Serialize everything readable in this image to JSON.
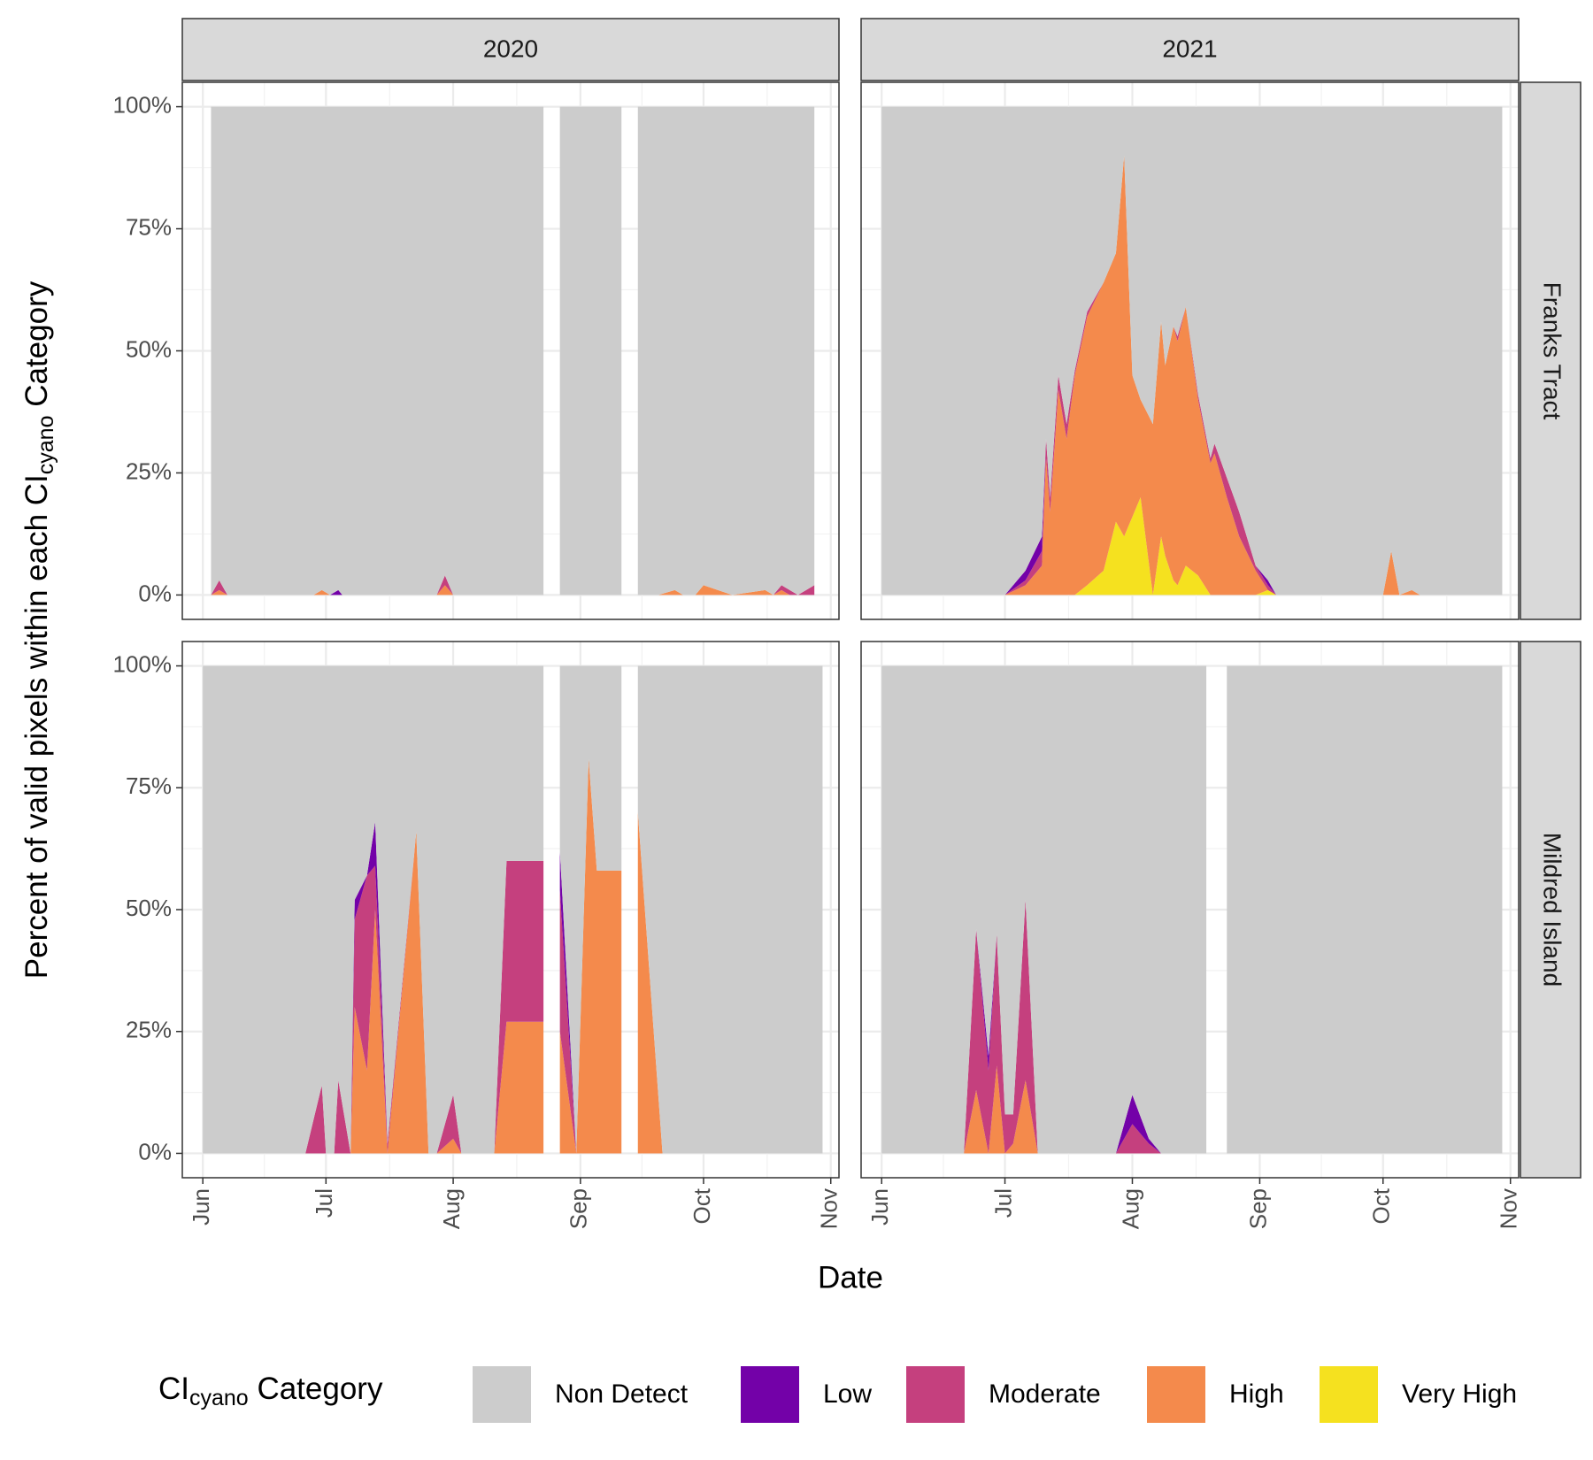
{
  "chart_data": [
    {
      "type": "area",
      "stacked": true,
      "facet_col": "2020",
      "ylabel": {
        "text": "Percent of valid pixels within each CI",
        "sub": "cyano",
        "tail": " Category"
      },
      "xlabel": "Date",
      "legend_title": {
        "text": "CI",
        "sub": "cyano",
        "tail": " Category"
      },
      "x": [
        "2020-06-03",
        "2020-06-05",
        "2020-06-07",
        "2020-06-28",
        "2020-06-30",
        "2020-07-02",
        "2020-07-04",
        "2020-07-05",
        "2020-07-28",
        "2020-07-30",
        "2020-08-01",
        "2020-08-23",
        "2020-08-25",
        "2020-08-27",
        "2020-09-11",
        "2020-09-13",
        "2020-09-15",
        "2020-09-20",
        "2020-09-24",
        "2020-09-26",
        "2020-09-29",
        "2020-10-01",
        "2020-10-08",
        "2020-10-16",
        "2020-10-18",
        "2020-10-20",
        "2020-10-22",
        "2020-10-24",
        "2020-10-28"
      ],
      "series": [
        {
          "name": "Non Detect",
          "color": "#cccccc",
          "values": [
            100,
            97,
            100,
            100,
            99,
            100,
            99,
            100,
            100,
            96,
            100,
            100,
            null,
            100,
            100,
            null,
            100,
            100,
            99,
            100,
            100,
            98,
            100,
            99,
            100,
            98,
            99,
            100,
            98
          ]
        },
        {
          "name": "Low",
          "color": "#7301a8",
          "values": [
            0,
            0,
            0,
            0,
            0,
            0,
            1,
            0,
            0,
            0,
            0,
            0,
            null,
            0,
            0,
            null,
            0,
            0,
            0,
            0,
            0,
            0,
            0,
            0,
            0,
            0,
            0,
            0,
            0
          ]
        },
        {
          "name": "Moderate",
          "color": "#c5407e",
          "values": [
            0,
            2,
            0,
            0,
            0,
            0,
            0,
            0,
            0,
            2,
            0,
            0,
            null,
            0,
            0,
            null,
            0,
            0,
            0,
            0,
            0,
            0,
            0,
            0,
            0,
            1,
            1,
            0,
            2
          ]
        },
        {
          "name": "High",
          "color": "#f48a4c",
          "values": [
            0,
            1,
            0,
            0,
            1,
            0,
            0,
            0,
            0,
            2,
            0,
            0,
            null,
            0,
            0,
            null,
            0,
            0,
            1,
            0,
            0,
            2,
            0,
            1,
            0,
            1,
            0,
            0,
            0
          ]
        },
        {
          "name": "Very High",
          "color": "#f5e11f",
          "values": [
            0,
            0,
            0,
            0,
            0,
            0,
            0,
            0,
            0,
            0,
            0,
            0,
            null,
            0,
            0,
            null,
            0,
            0,
            0,
            0,
            0,
            0,
            0,
            0,
            0,
            0,
            0,
            0,
            0
          ]
        }
      ],
      "xlim": [
        "2020-05-27",
        "2020-11-03"
      ],
      "ylim": [
        -5,
        105
      ],
      "yticks": [
        {
          "value": 0,
          "label": "0%"
        },
        {
          "value": 25,
          "label": "25%"
        },
        {
          "value": 50,
          "label": "50%"
        },
        {
          "value": 75,
          "label": "75%"
        },
        {
          "value": 100,
          "label": "100%"
        }
      ]
    },
    {
      "type": "area",
      "stacked": true,
      "facet_col": "2021",
      "facet_row": "Franks Tract",
      "x": [
        "2021-06-01",
        "2021-07-01",
        "2021-07-06",
        "2021-07-10",
        "2021-07-11",
        "2021-07-12",
        "2021-07-14",
        "2021-07-16",
        "2021-07-18",
        "2021-07-21",
        "2021-07-25",
        "2021-07-28",
        "2021-07-30",
        "2021-08-01",
        "2021-08-03",
        "2021-08-06",
        "2021-08-08",
        "2021-08-09",
        "2021-08-11",
        "2021-08-12",
        "2021-08-14",
        "2021-08-17",
        "2021-08-20",
        "2021-08-21",
        "2021-08-24",
        "2021-08-27",
        "2021-08-31",
        "2021-09-03",
        "2021-09-05",
        "2021-10-01",
        "2021-10-03",
        "2021-10-05",
        "2021-10-08",
        "2021-10-10",
        "2021-10-30"
      ],
      "series": [
        {
          "color": "#cccccc",
          "values": [
            100,
            100,
            95,
            88,
            68,
            80,
            55,
            65,
            54,
            42,
            36,
            30,
            10,
            55,
            60,
            65,
            44,
            53,
            45,
            47,
            41,
            59,
            72,
            69,
            76,
            83,
            94,
            97,
            100,
            100,
            91,
            100,
            99,
            100,
            100
          ]
        },
        {
          "color": "#7301a8",
          "values": [
            0,
            0,
            2,
            3,
            0,
            0,
            0,
            0,
            0,
            0,
            0,
            0,
            0,
            0,
            0,
            0,
            0,
            0,
            0,
            0,
            0,
            0,
            0,
            0,
            0,
            0,
            0,
            1,
            0,
            0,
            0,
            0,
            0,
            0,
            0
          ]
        },
        {
          "color": "#c5407e",
          "values": [
            0,
            0,
            1,
            3,
            4,
            3,
            3,
            3,
            1,
            1,
            0,
            0,
            0,
            0,
            0,
            0,
            0,
            0,
            0,
            1,
            0,
            1,
            1,
            2,
            4,
            5,
            1,
            1,
            0,
            0,
            0,
            0,
            0,
            0,
            0
          ]
        },
        {
          "color": "#f48a4c",
          "values": [
            0,
            0,
            2,
            6,
            28,
            17,
            42,
            32,
            45,
            55,
            59,
            55,
            78,
            29,
            20,
            35,
            44,
            39,
            52,
            50,
            53,
            36,
            27,
            29,
            20,
            12,
            5,
            0,
            0,
            0,
            9,
            0,
            1,
            0,
            0
          ]
        },
        {
          "color": "#f5e11f",
          "values": [
            0,
            0,
            0,
            0,
            0,
            0,
            0,
            0,
            0,
            2,
            5,
            15,
            12,
            16,
            20,
            0,
            12,
            8,
            3,
            2,
            6,
            4,
            0,
            0,
            0,
            0,
            0,
            1,
            0,
            0,
            0,
            0,
            0,
            0,
            0
          ]
        }
      ],
      "xlim": [
        "2021-05-27",
        "2021-11-03"
      ],
      "ylim": [
        -5,
        105
      ]
    },
    {
      "type": "area",
      "stacked": true,
      "x": [
        "2020-06-01",
        "2020-06-26",
        "2020-06-30",
        "2020-07-01",
        "2020-07-03",
        "2020-07-04",
        "2020-07-07",
        "2020-07-08",
        "2020-07-11",
        "2020-07-13",
        "2020-07-16",
        "2020-07-23",
        "2020-07-26",
        "2020-07-28",
        "2020-08-01",
        "2020-08-03",
        "2020-08-11",
        "2020-08-14",
        "2020-08-23",
        "2020-08-25",
        "2020-08-27",
        "2020-08-31",
        "2020-09-03",
        "2020-09-05",
        "2020-09-11",
        "2020-09-13",
        "2020-09-15",
        "2020-09-21",
        "2020-10-30"
      ],
      "series": [
        {
          "color": "#cccccc",
          "values": [
            100,
            100,
            86,
            100,
            100,
            85,
            100,
            48,
            43,
            32,
            98,
            34,
            100,
            100,
            88,
            100,
            100,
            40,
            40,
            null,
            38,
            100,
            19,
            42,
            42,
            null,
            30,
            100,
            100
          ]
        },
        {
          "color": "#7301a8",
          "values": [
            0,
            0,
            0,
            0,
            0,
            0,
            0,
            4,
            0,
            9,
            0,
            0,
            0,
            0,
            0,
            0,
            0,
            0,
            0,
            null,
            8,
            0,
            0,
            0,
            0,
            null,
            0,
            0,
            0
          ]
        },
        {
          "color": "#c5407e",
          "values": [
            0,
            0,
            14,
            0,
            0,
            15,
            0,
            18,
            40,
            9,
            2,
            0,
            0,
            0,
            9,
            0,
            0,
            33,
            33,
            null,
            29,
            0,
            0,
            0,
            0,
            null,
            0,
            0,
            0
          ]
        },
        {
          "color": "#f48a4c",
          "values": [
            0,
            0,
            0,
            0,
            0,
            0,
            0,
            30,
            17,
            50,
            0,
            66,
            0,
            0,
            3,
            0,
            0,
            27,
            27,
            null,
            25,
            0,
            81,
            58,
            58,
            null,
            70,
            0,
            0
          ]
        },
        {
          "color": "#f5e11f",
          "values": [
            0,
            0,
            0,
            0,
            0,
            0,
            0,
            0,
            0,
            0,
            0,
            0,
            0,
            0,
            0,
            0,
            0,
            0,
            0,
            null,
            0,
            0,
            0,
            0,
            0,
            null,
            0,
            0,
            0
          ]
        }
      ],
      "xlim": [
        "2020-05-27",
        "2020-11-03"
      ],
      "ylim": [
        -5,
        105
      ],
      "yticks": [
        {
          "value": 0,
          "label": "0%"
        },
        {
          "value": 25,
          "label": "25%"
        },
        {
          "value": 50,
          "label": "50%"
        },
        {
          "value": 75,
          "label": "75%"
        },
        {
          "value": 100,
          "label": "100%"
        }
      ],
      "xticks": [
        {
          "value": "2020-06-01",
          "label": "Jun"
        },
        {
          "value": "2020-07-01",
          "label": "Jul"
        },
        {
          "value": "2020-08-01",
          "label": "Aug"
        },
        {
          "value": "2020-09-01",
          "label": "Sep"
        },
        {
          "value": "2020-10-01",
          "label": "Oct"
        },
        {
          "value": "2020-11-01",
          "label": "Nov"
        }
      ]
    },
    {
      "type": "area",
      "stacked": true,
      "facet_row": "Mildred Island",
      "x": [
        "2021-06-01",
        "2021-06-21",
        "2021-06-24",
        "2021-06-27",
        "2021-06-29",
        "2021-07-01",
        "2021-07-03",
        "2021-07-06",
        "2021-07-09",
        "2021-07-28",
        "2021-08-01",
        "2021-08-05",
        "2021-08-08",
        "2021-08-19",
        "2021-08-22",
        "2021-08-24",
        "2021-10-30"
      ],
      "series": [
        {
          "color": "#cccccc",
          "values": [
            100,
            100,
            54,
            80,
            55,
            92,
            92,
            48,
            100,
            100,
            88,
            97,
            100,
            100,
            null,
            100,
            100
          ]
        },
        {
          "color": "#7301a8",
          "values": [
            0,
            0,
            0,
            3,
            0,
            0,
            0,
            0,
            0,
            0,
            6,
            1,
            0,
            0,
            null,
            0,
            0
          ]
        },
        {
          "color": "#c5407e",
          "values": [
            0,
            0,
            33,
            17,
            27,
            8,
            6,
            37,
            0,
            0,
            6,
            2,
            0,
            0,
            null,
            0,
            0
          ]
        },
        {
          "color": "#f48a4c",
          "values": [
            0,
            0,
            13,
            0,
            18,
            0,
            2,
            15,
            0,
            0,
            0,
            0,
            0,
            0,
            null,
            0,
            0
          ]
        },
        {
          "color": "#f5e11f",
          "values": [
            0,
            0,
            0,
            0,
            0,
            0,
            0,
            0,
            0,
            0,
            0,
            0,
            0,
            0,
            null,
            0,
            0
          ]
        }
      ],
      "xlim": [
        "2021-05-27",
        "2021-11-03"
      ],
      "ylim": [
        -5,
        105
      ],
      "xticks": [
        {
          "value": "2021-06-01",
          "label": "Jun"
        },
        {
          "value": "2021-07-01",
          "label": "Jul"
        },
        {
          "value": "2021-08-01",
          "label": "Aug"
        },
        {
          "value": "2021-09-01",
          "label": "Sep"
        },
        {
          "value": "2021-10-01",
          "label": "Oct"
        },
        {
          "value": "2021-11-01",
          "label": "Nov"
        }
      ]
    }
  ]
}
